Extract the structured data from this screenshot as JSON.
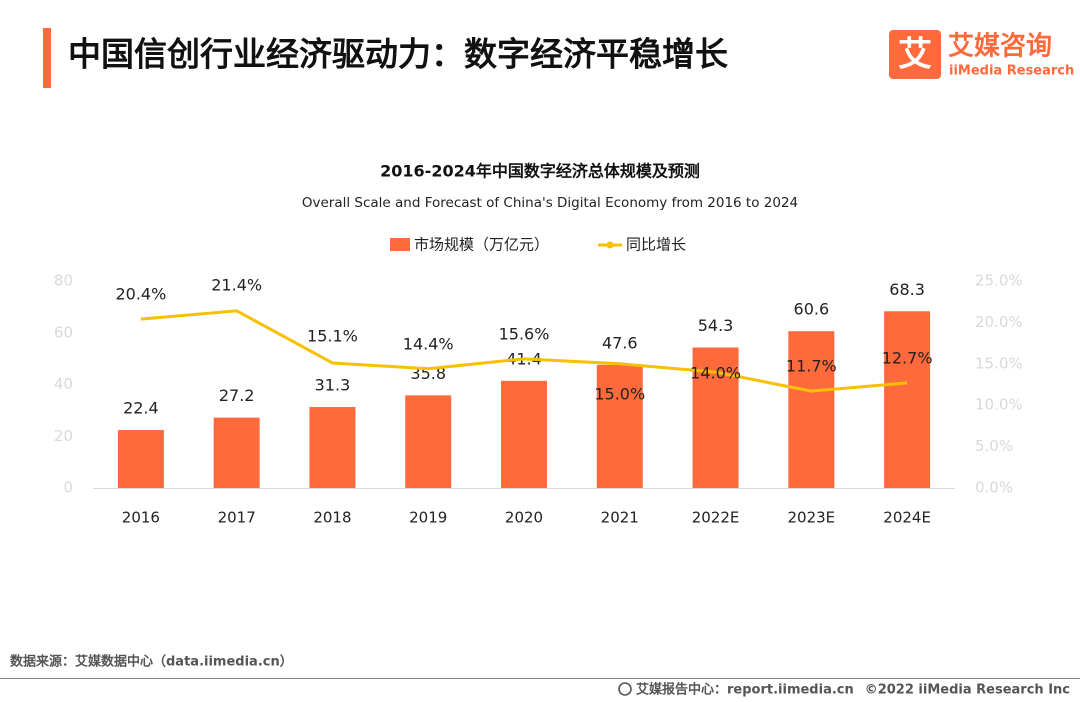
{
  "header": {
    "title": "中国信创行业经济驱动力：数字经济平稳增长",
    "logo_icon": "艾",
    "logo_text": "艾媒咨询",
    "logo_subtext": "iiMedia Research"
  },
  "chart_data": {
    "type": "combo",
    "title": "2016-2024年中国数字经济总体规模及预测",
    "subtitle": "Overall Scale and Forecast of China's Digital Economy from 2016 to 2024",
    "categories": [
      "2016",
      "2017",
      "2018",
      "2019",
      "2020",
      "2021",
      "2022E",
      "2023E",
      "2024E"
    ],
    "series": [
      {
        "name": "市场规模（万亿元）",
        "type": "bar",
        "color": "#ff6a3d",
        "values": [
          22.4,
          27.2,
          31.3,
          35.8,
          41.4,
          47.6,
          54.3,
          60.6,
          68.3
        ]
      },
      {
        "name": "同比增长",
        "type": "line",
        "axis": "y2",
        "color": "#f7c000",
        "values": [
          20.4,
          21.4,
          15.1,
          14.4,
          15.6,
          15.0,
          14.0,
          11.7,
          12.7
        ],
        "value_labels": [
          "20.4%",
          "21.4%",
          "15.1%",
          "14.4%",
          "15.6%",
          "15.0%",
          "14.0%",
          "11.7%",
          "12.7%"
        ]
      }
    ],
    "ylim": [
      0,
      80
    ],
    "yticks": [
      0,
      20,
      40,
      60,
      80
    ],
    "y2lim": [
      0,
      25
    ],
    "y2ticks": [
      {
        "value": 0,
        "label": "0.0%"
      },
      {
        "value": 5,
        "label": "5.0%"
      },
      {
        "value": 10,
        "label": "10.0%"
      },
      {
        "value": 15,
        "label": "15.0%"
      },
      {
        "value": 20,
        "label": "20.0%"
      },
      {
        "value": 25,
        "label": "25.0%"
      }
    ],
    "legend": "top",
    "grid": false
  },
  "footer": {
    "source": "数据来源：艾媒数据中心（data.iimedia.cn）",
    "credit": "艾媒报告中心：report.iimedia.cn",
    "copyright": "©2022 iiMedia Research Inc"
  }
}
